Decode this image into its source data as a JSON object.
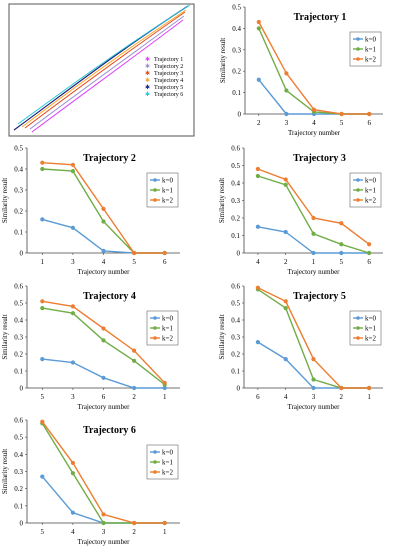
{
  "colors": {
    "k0": "#5b9bd5",
    "k1": "#70ad47",
    "k2": "#ed7d31"
  },
  "trajectory_plot": {
    "legend": [
      {
        "label": "Trajectory 1",
        "color": "#e040fb"
      },
      {
        "label": "Trajectory 2",
        "color": "#9c8fd0"
      },
      {
        "label": "Trajectory 3",
        "color": "#e64a19"
      },
      {
        "label": "Trajectory 4",
        "color": "#f9a825"
      },
      {
        "label": "Trajectory 5",
        "color": "#1a237e"
      },
      {
        "label": "Trajectory 6",
        "color": "#26c6da"
      }
    ]
  },
  "chart_data": [
    {
      "type": "line",
      "title": "Trajectory 1",
      "xlabel": "Trajectory number",
      "ylabel": "Similarity result",
      "categories": [
        "2",
        "3",
        "4",
        "5",
        "6"
      ],
      "ylim": [
        0,
        0.5
      ],
      "yticks": [
        "0",
        "0.1",
        "0.2",
        "0.3",
        "0.4",
        "0.5"
      ],
      "series": [
        {
          "name": "k=0",
          "values": [
            0.16,
            0.0,
            0.0,
            0.0,
            0.0
          ]
        },
        {
          "name": "k=1",
          "values": [
            0.4,
            0.11,
            0.01,
            0.0,
            0.0
          ]
        },
        {
          "name": "k=2",
          "values": [
            0.43,
            0.19,
            0.02,
            0.0,
            0.0
          ]
        }
      ]
    },
    {
      "type": "line",
      "title": "Trajectory 2",
      "xlabel": "Trajectory number",
      "ylabel": "Similarity result",
      "categories": [
        "1",
        "3",
        "4",
        "5",
        "6"
      ],
      "ylim": [
        0,
        0.5
      ],
      "yticks": [
        "0",
        "0.1",
        "0.2",
        "0.3",
        "0.4",
        "0.5"
      ],
      "series": [
        {
          "name": "k=0",
          "values": [
            0.16,
            0.12,
            0.01,
            0.0,
            0.0
          ]
        },
        {
          "name": "k=1",
          "values": [
            0.4,
            0.39,
            0.15,
            0.0,
            0.0
          ]
        },
        {
          "name": "k=2",
          "values": [
            0.43,
            0.42,
            0.21,
            0.0,
            0.0
          ]
        }
      ]
    },
    {
      "type": "line",
      "title": "Trajectory 3",
      "xlabel": "Trajectory number",
      "ylabel": "Similarity result",
      "categories": [
        "4",
        "2",
        "1",
        "5",
        "6"
      ],
      "ylim": [
        0,
        0.6
      ],
      "yticks": [
        "0",
        "0.1",
        "0.2",
        "0.3",
        "0.4",
        "0.5",
        "0.6"
      ],
      "series": [
        {
          "name": "k=0",
          "values": [
            0.15,
            0.12,
            0.0,
            0.0,
            0.0
          ]
        },
        {
          "name": "k=1",
          "values": [
            0.44,
            0.39,
            0.11,
            0.05,
            0.0
          ]
        },
        {
          "name": "k=2",
          "values": [
            0.48,
            0.42,
            0.2,
            0.17,
            0.05
          ]
        }
      ]
    },
    {
      "type": "line",
      "title": "Trajectory 4",
      "xlabel": "Trajectory number",
      "ylabel": "Similarity result",
      "categories": [
        "5",
        "3",
        "6",
        "2",
        "1"
      ],
      "ylim": [
        0,
        0.6
      ],
      "yticks": [
        "0",
        "0.1",
        "0.2",
        "0.3",
        "0.4",
        "0.5",
        "0.6"
      ],
      "series": [
        {
          "name": "k=0",
          "values": [
            0.17,
            0.15,
            0.06,
            0.0,
            0.0
          ]
        },
        {
          "name": "k=1",
          "values": [
            0.47,
            0.44,
            0.28,
            0.16,
            0.02
          ]
        },
        {
          "name": "k=2",
          "values": [
            0.51,
            0.48,
            0.35,
            0.22,
            0.03
          ]
        }
      ]
    },
    {
      "type": "line",
      "title": "Trajectory 5",
      "xlabel": "Trajectory number",
      "ylabel": "Similarity result",
      "categories": [
        "6",
        "4",
        "3",
        "2",
        "1"
      ],
      "ylim": [
        0,
        0.6
      ],
      "yticks": [
        "0",
        "0.1",
        "0.2",
        "0.3",
        "0.4",
        "0.5",
        "0.6"
      ],
      "series": [
        {
          "name": "k=0",
          "values": [
            0.27,
            0.17,
            0.0,
            0.0,
            0.0
          ]
        },
        {
          "name": "k=1",
          "values": [
            0.58,
            0.47,
            0.05,
            0.0,
            0.0
          ]
        },
        {
          "name": "k=2",
          "values": [
            0.59,
            0.51,
            0.17,
            0.0,
            0.0
          ]
        }
      ]
    },
    {
      "type": "line",
      "title": "Trajectory 6",
      "xlabel": "Trajectory number",
      "ylabel": "Similarity result",
      "categories": [
        "5",
        "4",
        "3",
        "2",
        "1"
      ],
      "ylim": [
        0,
        0.6
      ],
      "yticks": [
        "0",
        "0.1",
        "0.2",
        "0.3",
        "0.4",
        "0.5",
        "0.6"
      ],
      "series": [
        {
          "name": "k=0",
          "values": [
            0.27,
            0.06,
            0.0,
            0.0,
            0.0
          ]
        },
        {
          "name": "k=1",
          "values": [
            0.58,
            0.29,
            0.0,
            0.0,
            0.0
          ]
        },
        {
          "name": "k=2",
          "values": [
            0.59,
            0.35,
            0.05,
            0.0,
            0.0
          ]
        }
      ]
    }
  ]
}
